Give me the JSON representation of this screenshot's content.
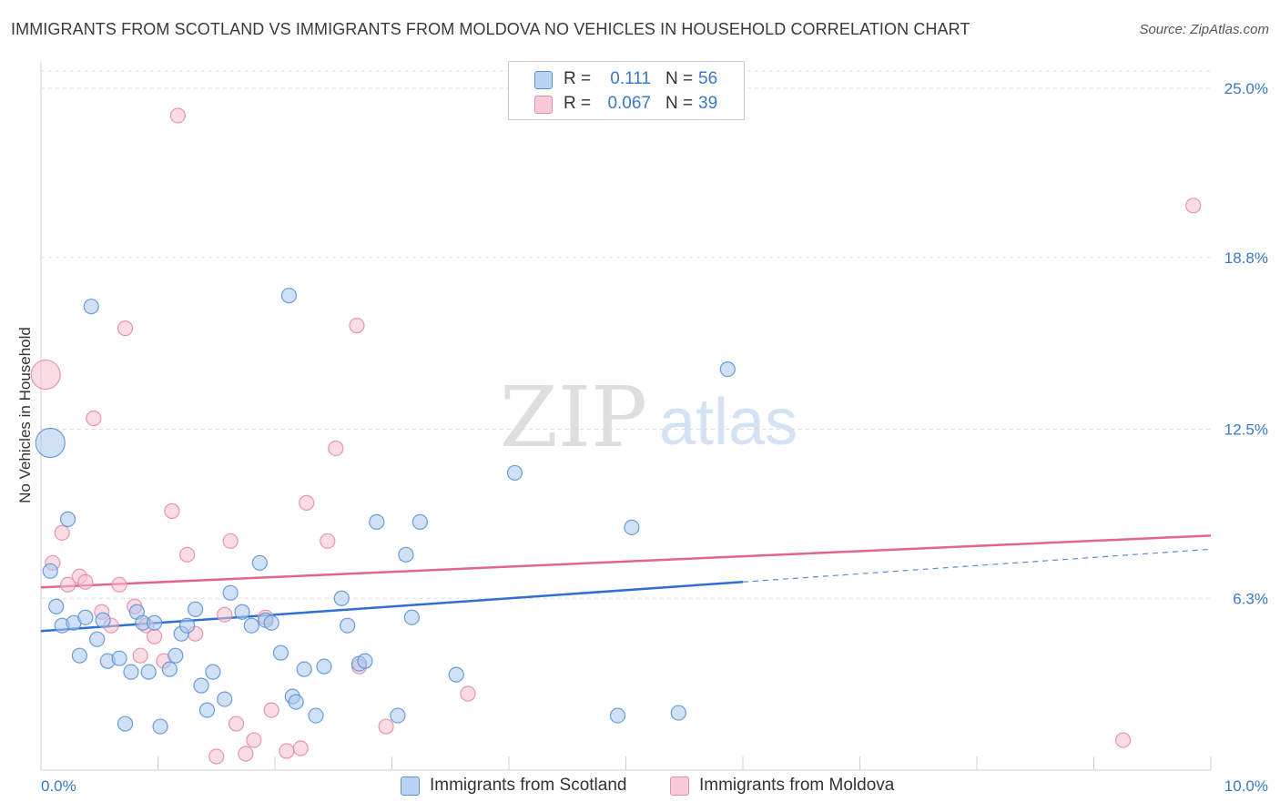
{
  "header": {
    "title": "IMMIGRANTS FROM SCOTLAND VS IMMIGRANTS FROM MOLDOVA NO VEHICLES IN HOUSEHOLD CORRELATION CHART",
    "source": "Source: ZipAtlas.com"
  },
  "watermark": {
    "part1": "ZIP",
    "part2": "atlas"
  },
  "legend": {
    "series": [
      {
        "r_label": "R =",
        "r_value": "0.111",
        "n_label": "N =",
        "n_value": "56"
      },
      {
        "r_label": "R =",
        "r_value": "0.067",
        "n_label": "N =",
        "n_value": "39"
      }
    ]
  },
  "chart_data": {
    "type": "scatter",
    "title": "IMMIGRANTS FROM SCOTLAND VS IMMIGRANTS FROM MOLDOVA NO VEHICLES IN HOUSEHOLD CORRELATION CHART",
    "xlabel": "",
    "ylabel": "No Vehicles in Household",
    "xlim": [
      0,
      10
    ],
    "ylim": [
      0,
      25
    ],
    "x_tick_labels": [
      "0.0%",
      "10.0%"
    ],
    "y_tick_labels": [
      "25.0%",
      "18.8%",
      "12.5%",
      "6.3%"
    ],
    "y_ticks": [
      25.0,
      18.8,
      12.5,
      6.3
    ],
    "grid": "horizontal dashed",
    "legend_position": "top-center",
    "colors": {
      "scotland_fill": "#a9c8ef",
      "scotland_stroke": "#5b93d6",
      "scotland_line": "#2f6fcf",
      "moldova_fill": "#f6bfd0",
      "moldova_stroke": "#e88aa8",
      "moldova_line": "#e0648f",
      "axis_text": "#3b78c4"
    },
    "series": [
      {
        "name": "Immigrants from Scotland",
        "trend": {
          "x0": 0,
          "y0": 5.1,
          "x1": 6.0,
          "y1": 6.9,
          "dashed_to_x": 10,
          "dashed_to_y": 8.1
        },
        "points": [
          {
            "x": 0.08,
            "y": 12.0,
            "big": true
          },
          {
            "x": 0.08,
            "y": 7.3
          },
          {
            "x": 0.13,
            "y": 6.0
          },
          {
            "x": 0.18,
            "y": 5.3
          },
          {
            "x": 0.23,
            "y": 9.2
          },
          {
            "x": 0.28,
            "y": 5.4
          },
          {
            "x": 0.33,
            "y": 4.2
          },
          {
            "x": 0.38,
            "y": 5.6
          },
          {
            "x": 0.43,
            "y": 17.0
          },
          {
            "x": 0.48,
            "y": 4.8
          },
          {
            "x": 0.53,
            "y": 5.5
          },
          {
            "x": 0.57,
            "y": 4.0
          },
          {
            "x": 0.67,
            "y": 4.1
          },
          {
            "x": 0.72,
            "y": 1.7
          },
          {
            "x": 0.77,
            "y": 3.6
          },
          {
            "x": 0.82,
            "y": 5.8
          },
          {
            "x": 0.87,
            "y": 5.4
          },
          {
            "x": 0.92,
            "y": 3.6
          },
          {
            "x": 0.97,
            "y": 5.4
          },
          {
            "x": 1.02,
            "y": 1.6
          },
          {
            "x": 1.1,
            "y": 3.7
          },
          {
            "x": 1.15,
            "y": 4.2
          },
          {
            "x": 1.2,
            "y": 5.0
          },
          {
            "x": 1.25,
            "y": 5.3
          },
          {
            "x": 1.32,
            "y": 5.9
          },
          {
            "x": 1.37,
            "y": 3.1
          },
          {
            "x": 1.42,
            "y": 2.2
          },
          {
            "x": 1.47,
            "y": 3.6
          },
          {
            "x": 1.57,
            "y": 2.6
          },
          {
            "x": 1.62,
            "y": 6.5
          },
          {
            "x": 1.72,
            "y": 5.8
          },
          {
            "x": 1.8,
            "y": 5.3
          },
          {
            "x": 1.87,
            "y": 7.6
          },
          {
            "x": 1.92,
            "y": 5.5
          },
          {
            "x": 1.97,
            "y": 5.4
          },
          {
            "x": 2.05,
            "y": 4.3
          },
          {
            "x": 2.12,
            "y": 17.4
          },
          {
            "x": 2.15,
            "y": 2.7
          },
          {
            "x": 2.18,
            "y": 2.5
          },
          {
            "x": 2.25,
            "y": 3.7
          },
          {
            "x": 2.35,
            "y": 2.0
          },
          {
            "x": 2.42,
            "y": 3.8
          },
          {
            "x": 2.57,
            "y": 6.3
          },
          {
            "x": 2.62,
            "y": 5.3
          },
          {
            "x": 2.72,
            "y": 3.9
          },
          {
            "x": 2.77,
            "y": 4.0
          },
          {
            "x": 2.87,
            "y": 9.1
          },
          {
            "x": 3.05,
            "y": 2.0
          },
          {
            "x": 3.12,
            "y": 7.9
          },
          {
            "x": 3.17,
            "y": 5.6
          },
          {
            "x": 3.24,
            "y": 9.1
          },
          {
            "x": 3.55,
            "y": 3.5
          },
          {
            "x": 4.05,
            "y": 10.9
          },
          {
            "x": 4.93,
            "y": 2.0
          },
          {
            "x": 5.05,
            "y": 8.9
          },
          {
            "x": 5.45,
            "y": 2.1
          },
          {
            "x": 5.87,
            "y": 14.7
          }
        ]
      },
      {
        "name": "Immigrants from Moldova",
        "trend": {
          "x0": 0,
          "y0": 6.7,
          "x1": 10,
          "y1": 8.6
        },
        "points": [
          {
            "x": 0.04,
            "y": 14.5,
            "big": true
          },
          {
            "x": 0.1,
            "y": 7.6
          },
          {
            "x": 0.18,
            "y": 8.7
          },
          {
            "x": 0.23,
            "y": 6.8
          },
          {
            "x": 0.33,
            "y": 7.1
          },
          {
            "x": 0.38,
            "y": 6.9
          },
          {
            "x": 0.45,
            "y": 12.9
          },
          {
            "x": 0.52,
            "y": 5.8
          },
          {
            "x": 0.6,
            "y": 5.3
          },
          {
            "x": 0.67,
            "y": 6.8
          },
          {
            "x": 0.72,
            "y": 16.2
          },
          {
            "x": 0.8,
            "y": 6.0
          },
          {
            "x": 0.85,
            "y": 4.2
          },
          {
            "x": 0.9,
            "y": 5.3
          },
          {
            "x": 0.97,
            "y": 4.9
          },
          {
            "x": 1.05,
            "y": 4.0
          },
          {
            "x": 1.12,
            "y": 9.5
          },
          {
            "x": 1.17,
            "y": 24.0
          },
          {
            "x": 1.25,
            "y": 7.9
          },
          {
            "x": 1.32,
            "y": 5.0
          },
          {
            "x": 1.5,
            "y": 0.5
          },
          {
            "x": 1.57,
            "y": 5.7
          },
          {
            "x": 1.62,
            "y": 8.4
          },
          {
            "x": 1.67,
            "y": 1.7
          },
          {
            "x": 1.75,
            "y": 0.6
          },
          {
            "x": 1.82,
            "y": 1.1
          },
          {
            "x": 1.92,
            "y": 5.6
          },
          {
            "x": 1.97,
            "y": 2.2
          },
          {
            "x": 2.1,
            "y": 0.7
          },
          {
            "x": 2.22,
            "y": 0.8
          },
          {
            "x": 2.27,
            "y": 9.8
          },
          {
            "x": 2.45,
            "y": 8.4
          },
          {
            "x": 2.52,
            "y": 11.8
          },
          {
            "x": 2.7,
            "y": 16.3
          },
          {
            "x": 2.72,
            "y": 3.8
          },
          {
            "x": 2.95,
            "y": 1.6
          },
          {
            "x": 3.65,
            "y": 2.8
          },
          {
            "x": 9.25,
            "y": 1.1
          },
          {
            "x": 9.85,
            "y": 20.7
          }
        ]
      }
    ]
  },
  "bottom_legend": {
    "items": [
      {
        "label": "Immigrants from Scotland"
      },
      {
        "label": "Immigrants from Moldova"
      }
    ]
  }
}
